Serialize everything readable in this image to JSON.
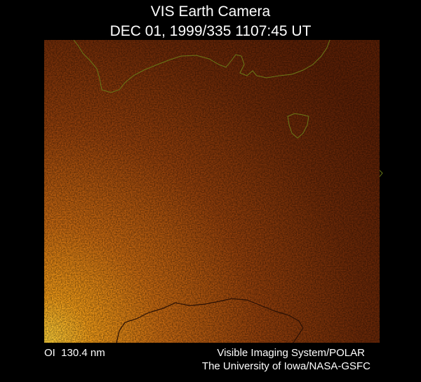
{
  "header": {
    "title": "VIS Earth Camera",
    "timestamp": "DEC 01, 1999/335 1107:45 UT"
  },
  "footer": {
    "wavelength": "OI  130.4 nm",
    "instrument": "Visible Imaging System/POLAR",
    "credit": "The University of Iowa/NASA-GSFC"
  }
}
